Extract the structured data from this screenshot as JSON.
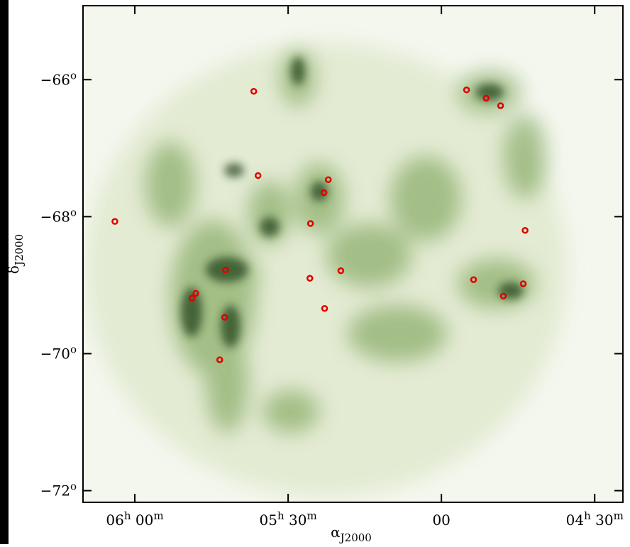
{
  "chart_data": {
    "type": "scatter",
    "x_label": "αJ2000",
    "y_label": "δJ2000",
    "xlim": [
      6.169,
      4.408
    ],
    "ylim": [
      -72.17,
      -64.92
    ],
    "xticks": [
      {
        "value": 6.0,
        "label": "06h 00m"
      },
      {
        "value": 5.5,
        "label": "05h 30m"
      },
      {
        "value": 5.0,
        "label": "00"
      },
      {
        "value": 4.5,
        "label": "04h 30m"
      }
    ],
    "yticks": [
      {
        "value": -66,
        "label": "−66°"
      },
      {
        "value": -68,
        "label": "−68°"
      },
      {
        "value": -70,
        "label": "−70°"
      },
      {
        "value": -72,
        "label": "−72°"
      }
    ],
    "color": "#e00000",
    "x": [
      5.612,
      4.918,
      4.854,
      4.807,
      5.598,
      5.369,
      5.383,
      5.427,
      6.065,
      4.727,
      5.704,
      5.328,
      5.429,
      4.895,
      4.733,
      5.801,
      5.813,
      4.798,
      5.381,
      5.707,
      5.723
    ],
    "y": [
      -66.17,
      -66.15,
      -66.27,
      -66.38,
      -67.4,
      -67.46,
      -67.65,
      -68.1,
      -68.07,
      -68.2,
      -68.78,
      -68.79,
      -68.9,
      -68.92,
      -68.98,
      -69.12,
      -69.19,
      -69.16,
      -69.34,
      -69.47,
      -70.09
    ]
  }
}
